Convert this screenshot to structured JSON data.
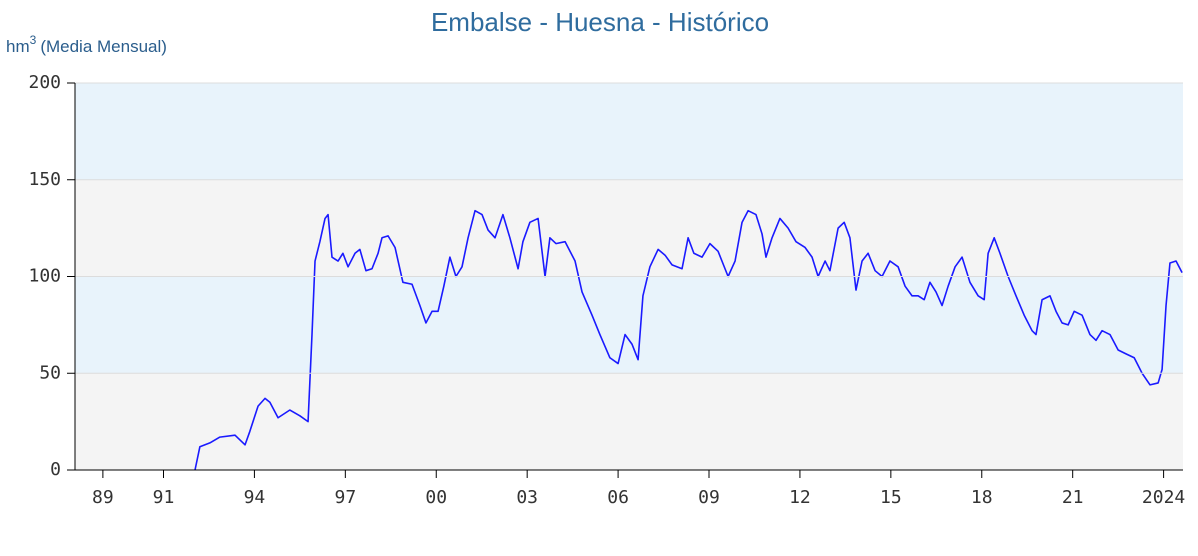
{
  "chart_data": {
    "type": "line",
    "title": "Embalse - Huesna - Histórico",
    "y_label": {
      "unit": "hm",
      "exponent": "3",
      "note": "(Media Mensual)"
    },
    "color": "#1a1aff",
    "bands": [
      "#f4f4f4",
      "#e8f3fb"
    ],
    "grid": true,
    "xlim": [
      1988.08,
      2024.64
    ],
    "ylim": [
      0,
      200
    ],
    "yticks": [
      0,
      50,
      100,
      150,
      200
    ],
    "xticks": [
      {
        "value": 1989,
        "label": "89"
      },
      {
        "value": 1991,
        "label": "91"
      },
      {
        "value": 1994,
        "label": "94"
      },
      {
        "value": 1997,
        "label": "97"
      },
      {
        "value": 2000,
        "label": "00"
      },
      {
        "value": 2003,
        "label": "03"
      },
      {
        "value": 2006,
        "label": "06"
      },
      {
        "value": 2009,
        "label": "09"
      },
      {
        "value": 2012,
        "label": "12"
      },
      {
        "value": 2015,
        "label": "15"
      },
      {
        "value": 2018,
        "label": "18"
      },
      {
        "value": 2021,
        "label": "21"
      },
      2024
    ],
    "x": [
      1992.04,
      1992.2,
      1992.53,
      1992.86,
      1993.36,
      1993.69,
      1993.85,
      1994.12,
      1994.35,
      1994.51,
      1994.78,
      1995.17,
      1995.5,
      1995.77,
      1995.9,
      1996.0,
      1996.16,
      1996.33,
      1996.43,
      1996.56,
      1996.76,
      1996.92,
      1997.09,
      1997.32,
      1997.48,
      1997.68,
      1997.88,
      1998.08,
      1998.21,
      1998.41,
      1998.64,
      1998.9,
      1999.2,
      1999.46,
      1999.66,
      1999.86,
      2000.06,
      2000.25,
      2000.45,
      2000.65,
      2000.85,
      2001.05,
      2001.28,
      2001.51,
      2001.71,
      2001.94,
      2002.2,
      2002.43,
      2002.7,
      2002.86,
      2003.09,
      2003.36,
      2003.59,
      2003.75,
      2003.95,
      2004.25,
      2004.58,
      2004.81,
      2005.14,
      2005.4,
      2005.73,
      2006.0,
      2006.23,
      2006.46,
      2006.66,
      2006.82,
      2007.05,
      2007.32,
      2007.55,
      2007.78,
      2008.11,
      2008.31,
      2008.5,
      2008.77,
      2009.03,
      2009.3,
      2009.63,
      2009.86,
      2010.09,
      2010.29,
      2010.55,
      2010.75,
      2010.88,
      2011.08,
      2011.34,
      2011.61,
      2011.87,
      2012.17,
      2012.4,
      2012.6,
      2012.83,
      2012.99,
      2013.26,
      2013.46,
      2013.65,
      2013.85,
      2014.05,
      2014.25,
      2014.48,
      2014.71,
      2014.97,
      2015.24,
      2015.47,
      2015.7,
      2015.9,
      2016.1,
      2016.29,
      2016.49,
      2016.69,
      2016.89,
      2017.12,
      2017.35,
      2017.61,
      2017.88,
      2018.08,
      2018.21,
      2018.41,
      2018.6,
      2018.87,
      2019.13,
      2019.4,
      2019.66,
      2019.79,
      2019.99,
      2020.25,
      2020.45,
      2020.65,
      2020.85,
      2021.05,
      2021.31,
      2021.57,
      2021.77,
      2021.97,
      2022.23,
      2022.5,
      2022.76,
      2023.03,
      2023.29,
      2023.55,
      2023.82,
      2023.95,
      2024.08,
      2024.21,
      2024.41,
      2024.61
    ],
    "values": [
      0,
      12,
      14,
      17,
      18,
      13,
      20,
      33,
      37,
      35,
      27,
      31,
      28,
      25,
      70,
      108,
      118,
      130,
      132,
      110,
      108,
      112,
      105,
      112,
      114,
      103,
      104,
      112,
      120,
      121,
      115,
      97,
      96,
      85,
      76,
      82,
      82,
      95,
      110,
      100,
      105,
      120,
      134,
      132,
      124,
      120,
      132,
      120,
      104,
      118,
      128,
      130,
      100,
      120,
      117,
      118,
      108,
      92,
      80,
      70,
      58,
      55,
      70,
      65,
      57,
      90,
      105,
      114,
      111,
      106,
      104,
      120,
      112,
      110,
      117,
      113,
      100,
      108,
      128,
      134,
      132,
      122,
      110,
      120,
      130,
      125,
      118,
      115,
      110,
      100,
      108,
      103,
      125,
      128,
      120,
      93,
      108,
      112,
      103,
      100,
      108,
      105,
      95,
      90,
      90,
      88,
      97,
      92,
      85,
      95,
      105,
      110,
      97,
      90,
      88,
      112,
      120,
      112,
      100,
      90,
      80,
      72,
      70,
      88,
      90,
      82,
      76,
      75,
      82,
      80,
      70,
      67,
      72,
      70,
      62,
      60,
      58,
      50,
      44,
      45,
      52,
      85,
      107,
      108,
      102
    ]
  }
}
